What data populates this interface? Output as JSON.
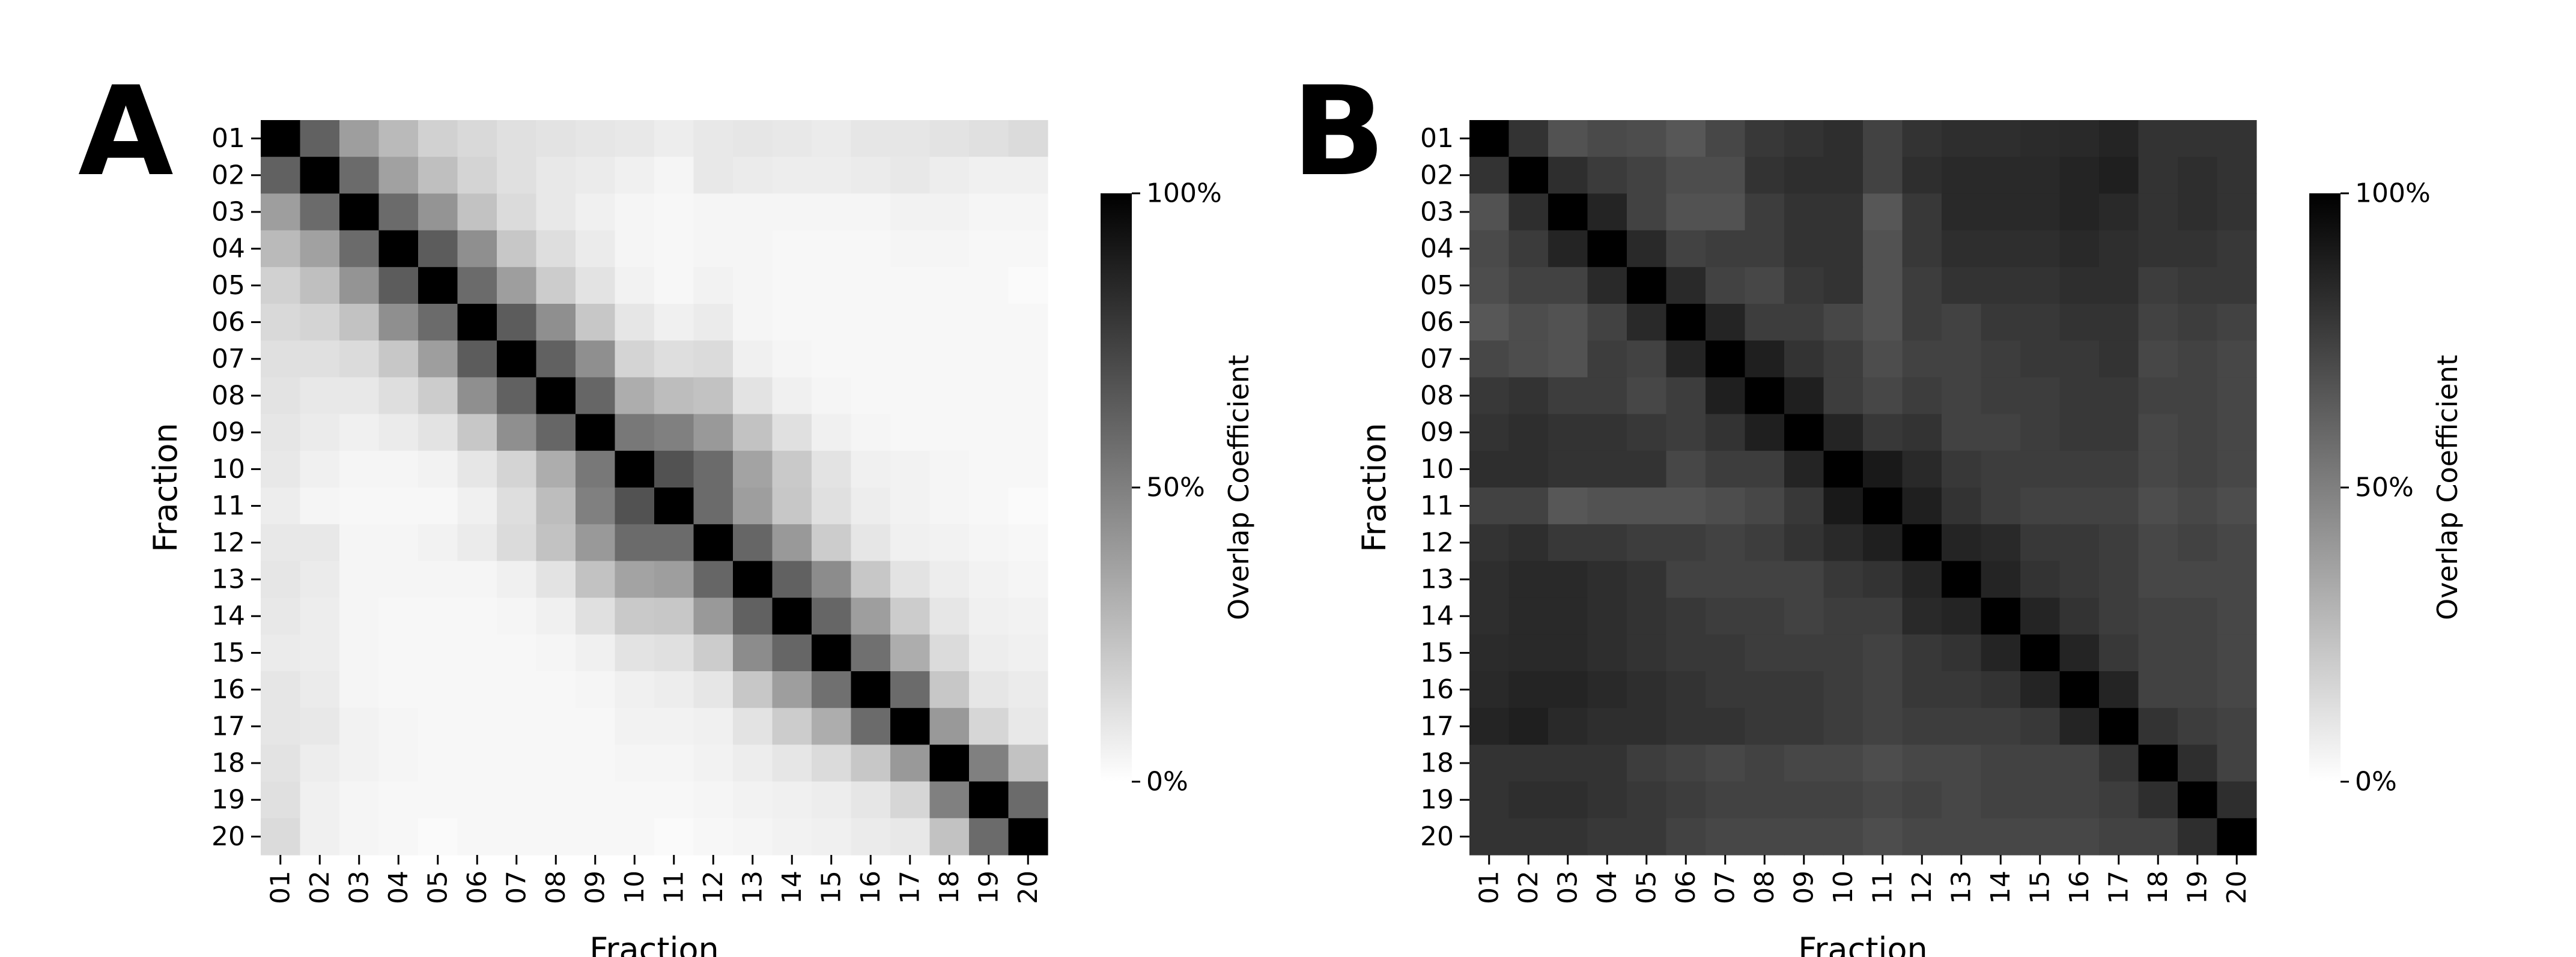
{
  "chart_data": [
    {
      "type": "heatmap",
      "panel_label": "A",
      "title": "",
      "xlabel": "Fraction",
      "ylabel": "Fraction",
      "categories": [
        "01",
        "02",
        "03",
        "04",
        "05",
        "06",
        "07",
        "08",
        "09",
        "10",
        "11",
        "12",
        "13",
        "14",
        "15",
        "16",
        "17",
        "18",
        "19",
        "20"
      ],
      "colorbar": {
        "label": "Overlap Coefficient",
        "min": 0,
        "max": 100,
        "ticks": [
          "0%",
          "50%",
          "100%"
        ],
        "colormap": "white-to-black"
      },
      "values": [
        [
          100,
          62,
          38,
          27,
          18,
          15,
          12,
          11,
          10,
          9,
          7,
          9,
          10,
          9,
          8,
          10,
          10,
          11,
          12,
          14
        ],
        [
          62,
          100,
          58,
          37,
          25,
          17,
          12,
          9,
          8,
          6,
          4,
          9,
          8,
          7,
          7,
          8,
          9,
          7,
          6,
          6
        ],
        [
          38,
          58,
          100,
          58,
          42,
          24,
          14,
          9,
          6,
          4,
          3,
          4,
          4,
          4,
          4,
          4,
          5,
          5,
          4,
          4
        ],
        [
          27,
          37,
          58,
          100,
          64,
          44,
          22,
          13,
          8,
          4,
          3,
          4,
          4,
          3,
          3,
          3,
          4,
          4,
          3,
          3
        ],
        [
          18,
          25,
          42,
          64,
          100,
          58,
          38,
          20,
          11,
          5,
          3,
          5,
          4,
          3,
          3,
          3,
          3,
          3,
          3,
          2
        ],
        [
          15,
          17,
          24,
          44,
          58,
          100,
          64,
          44,
          22,
          10,
          6,
          8,
          4,
          3,
          3,
          3,
          3,
          3,
          3,
          3
        ],
        [
          12,
          12,
          14,
          22,
          38,
          64,
          100,
          62,
          44,
          17,
          13,
          14,
          6,
          4,
          3,
          3,
          3,
          3,
          3,
          3
        ],
        [
          11,
          9,
          9,
          13,
          20,
          44,
          62,
          100,
          60,
          32,
          26,
          24,
          11,
          6,
          4,
          3,
          3,
          3,
          3,
          3
        ],
        [
          10,
          8,
          6,
          8,
          11,
          22,
          44,
          60,
          100,
          53,
          50,
          40,
          24,
          12,
          6,
          4,
          3,
          3,
          3,
          3
        ],
        [
          9,
          6,
          4,
          4,
          5,
          10,
          17,
          32,
          53,
          100,
          68,
          58,
          36,
          21,
          11,
          6,
          5,
          4,
          3,
          3
        ],
        [
          7,
          4,
          3,
          3,
          3,
          6,
          13,
          26,
          50,
          68,
          100,
          58,
          38,
          22,
          12,
          7,
          5,
          4,
          3,
          2
        ],
        [
          9,
          9,
          4,
          4,
          5,
          8,
          14,
          24,
          40,
          58,
          58,
          100,
          60,
          40,
          20,
          10,
          6,
          5,
          4,
          3
        ],
        [
          10,
          8,
          4,
          4,
          4,
          4,
          6,
          11,
          24,
          36,
          38,
          60,
          100,
          62,
          45,
          22,
          11,
          7,
          5,
          4
        ],
        [
          9,
          7,
          4,
          3,
          3,
          3,
          4,
          6,
          12,
          21,
          22,
          40,
          62,
          100,
          60,
          38,
          20,
          10,
          6,
          5
        ],
        [
          8,
          7,
          4,
          3,
          3,
          3,
          3,
          4,
          6,
          11,
          12,
          20,
          45,
          60,
          100,
          56,
          32,
          14,
          7,
          6
        ],
        [
          10,
          8,
          4,
          3,
          3,
          3,
          3,
          3,
          4,
          6,
          7,
          10,
          22,
          38,
          56,
          100,
          58,
          22,
          10,
          8
        ],
        [
          10,
          9,
          5,
          4,
          3,
          3,
          3,
          3,
          3,
          5,
          5,
          6,
          11,
          20,
          32,
          58,
          100,
          40,
          16,
          9
        ],
        [
          11,
          7,
          5,
          4,
          3,
          3,
          3,
          3,
          3,
          4,
          4,
          5,
          7,
          10,
          14,
          22,
          40,
          100,
          50,
          24
        ],
        [
          12,
          6,
          4,
          3,
          3,
          3,
          3,
          3,
          3,
          3,
          3,
          4,
          5,
          6,
          7,
          10,
          16,
          50,
          100,
          58
        ],
        [
          14,
          6,
          4,
          3,
          2,
          3,
          3,
          3,
          3,
          3,
          2,
          3,
          4,
          5,
          6,
          8,
          9,
          24,
          58,
          100
        ]
      ]
    },
    {
      "type": "heatmap",
      "panel_label": "B",
      "title": "",
      "xlabel": "Fraction",
      "ylabel": "Fraction",
      "categories": [
        "01",
        "02",
        "03",
        "04",
        "05",
        "06",
        "07",
        "08",
        "09",
        "10",
        "11",
        "12",
        "13",
        "14",
        "15",
        "16",
        "17",
        "18",
        "19",
        "20"
      ],
      "colorbar": {
        "label": "Overlap Coefficient",
        "min": 0,
        "max": 100,
        "ticks": [
          "0%",
          "50%",
          "100%"
        ],
        "colormap": "white-to-black"
      },
      "values": [
        [
          100,
          80,
          68,
          71,
          70,
          66,
          72,
          78,
          80,
          82,
          74,
          80,
          82,
          82,
          83,
          84,
          86,
          80,
          80,
          80
        ],
        [
          80,
          100,
          82,
          77,
          74,
          70,
          70,
          80,
          82,
          82,
          74,
          82,
          84,
          84,
          84,
          86,
          88,
          80,
          82,
          80
        ],
        [
          68,
          82,
          100,
          86,
          74,
          68,
          68,
          76,
          80,
          80,
          66,
          78,
          84,
          84,
          84,
          86,
          84,
          80,
          82,
          80
        ],
        [
          71,
          77,
          86,
          100,
          84,
          74,
          76,
          76,
          80,
          80,
          68,
          78,
          82,
          82,
          82,
          84,
          82,
          80,
          80,
          78
        ],
        [
          70,
          74,
          74,
          84,
          100,
          84,
          74,
          72,
          78,
          80,
          68,
          76,
          80,
          80,
          80,
          82,
          82,
          76,
          78,
          78
        ],
        [
          66,
          70,
          68,
          74,
          84,
          100,
          86,
          76,
          76,
          72,
          68,
          76,
          74,
          78,
          78,
          80,
          80,
          74,
          76,
          74
        ],
        [
          72,
          70,
          68,
          76,
          74,
          86,
          100,
          88,
          80,
          76,
          70,
          74,
          74,
          76,
          78,
          78,
          80,
          72,
          74,
          72
        ],
        [
          78,
          80,
          76,
          76,
          72,
          76,
          88,
          100,
          88,
          76,
          72,
          76,
          74,
          76,
          76,
          78,
          78,
          74,
          74,
          72
        ],
        [
          80,
          82,
          80,
          80,
          78,
          76,
          80,
          88,
          100,
          86,
          78,
          80,
          74,
          74,
          76,
          78,
          78,
          72,
          74,
          72
        ],
        [
          82,
          82,
          80,
          80,
          80,
          72,
          76,
          76,
          86,
          100,
          90,
          84,
          78,
          76,
          76,
          76,
          76,
          72,
          74,
          72
        ],
        [
          74,
          74,
          66,
          68,
          68,
          68,
          70,
          72,
          78,
          90,
          100,
          88,
          80,
          76,
          74,
          74,
          74,
          70,
          72,
          70
        ],
        [
          80,
          82,
          78,
          78,
          76,
          76,
          74,
          76,
          80,
          84,
          88,
          100,
          86,
          84,
          78,
          78,
          76,
          72,
          74,
          72
        ],
        [
          82,
          84,
          84,
          82,
          80,
          74,
          74,
          74,
          74,
          78,
          80,
          86,
          100,
          86,
          80,
          78,
          76,
          72,
          72,
          72
        ],
        [
          82,
          84,
          84,
          82,
          80,
          78,
          76,
          76,
          74,
          76,
          76,
          84,
          86,
          100,
          86,
          80,
          76,
          74,
          74,
          72
        ],
        [
          83,
          84,
          84,
          82,
          80,
          78,
          78,
          76,
          76,
          76,
          74,
          78,
          80,
          86,
          100,
          86,
          78,
          74,
          74,
          72
        ],
        [
          84,
          86,
          86,
          84,
          82,
          80,
          78,
          78,
          78,
          76,
          74,
          78,
          78,
          80,
          86,
          100,
          86,
          74,
          74,
          72
        ],
        [
          86,
          88,
          84,
          82,
          82,
          80,
          80,
          78,
          78,
          76,
          74,
          76,
          76,
          76,
          78,
          86,
          100,
          80,
          76,
          74
        ],
        [
          80,
          80,
          80,
          80,
          76,
          74,
          72,
          74,
          72,
          72,
          70,
          72,
          72,
          74,
          74,
          74,
          80,
          100,
          82,
          74
        ],
        [
          80,
          82,
          82,
          80,
          78,
          76,
          74,
          74,
          74,
          74,
          72,
          74,
          72,
          74,
          74,
          74,
          76,
          82,
          100,
          82
        ],
        [
          80,
          80,
          80,
          78,
          78,
          74,
          72,
          72,
          72,
          72,
          70,
          72,
          72,
          72,
          72,
          72,
          74,
          74,
          82,
          100
        ]
      ]
    }
  ]
}
